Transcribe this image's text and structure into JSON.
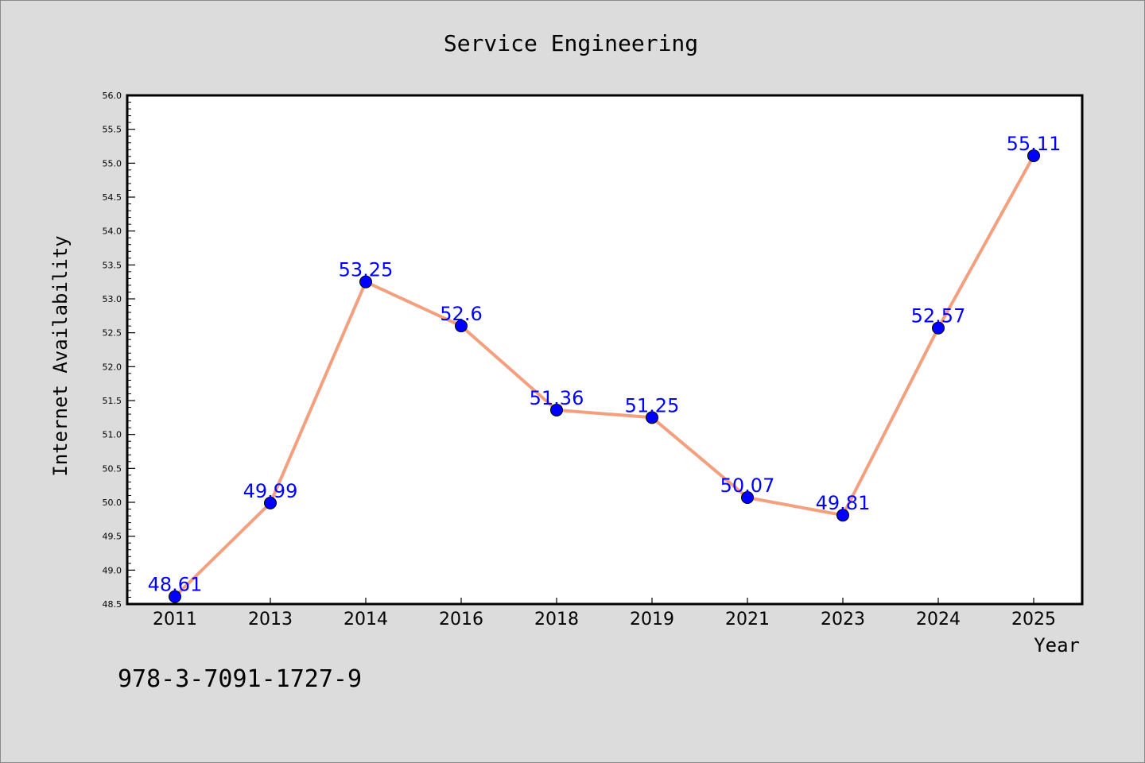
{
  "footer": "978-3-7091-1727-9",
  "colors": {
    "background": "#dcdcdc",
    "plot_background": "#ffffff",
    "line": "#f4a07e",
    "marker": "#0000ff",
    "label": "#0000ff"
  },
  "chart_data": {
    "type": "line",
    "title": "Service Engineering",
    "xlabel": "Year",
    "ylabel": "Internet Availability",
    "categories": [
      "2011",
      "2013",
      "2014",
      "2016",
      "2018",
      "2019",
      "2021",
      "2023",
      "2024",
      "2025"
    ],
    "values": [
      48.61,
      49.99,
      53.25,
      52.6,
      51.36,
      51.25,
      50.07,
      49.81,
      52.57,
      55.11
    ],
    "data_labels": [
      "48.61",
      "49.99",
      "53.25",
      "52.6",
      "51.36",
      "51.25",
      "50.07",
      "49.81",
      "52.57",
      "55.11"
    ],
    "ylim": [
      48.5,
      56.0
    ],
    "yticks": [
      "48.5",
      "49.0",
      "49.5",
      "50.0",
      "50.5",
      "51.0",
      "51.5",
      "52.0",
      "52.5",
      "53.0",
      "53.5",
      "54.0",
      "54.5",
      "55.0",
      "55.5",
      "56.0"
    ],
    "grid": false,
    "legend": "none"
  }
}
